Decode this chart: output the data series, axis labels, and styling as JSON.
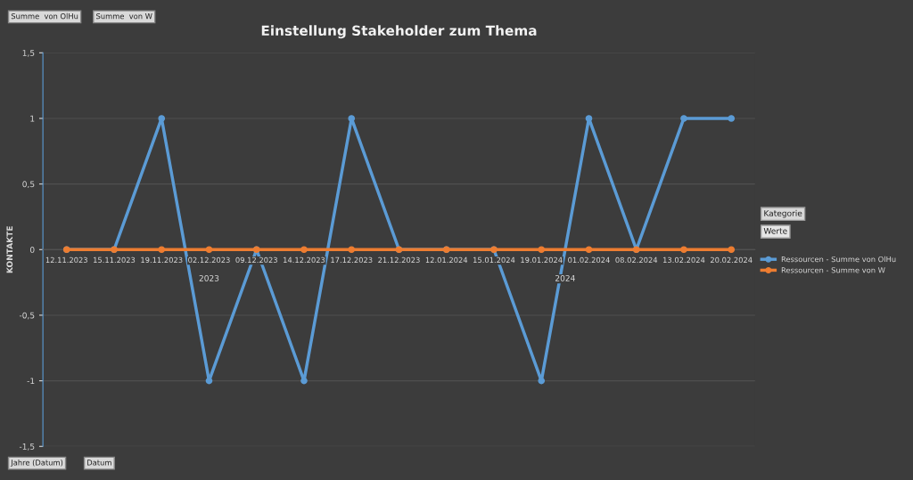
{
  "chart_data": {
    "type": "line",
    "title": "Einstellung Stakeholder zum Thema",
    "ylabel": "KONTAKTE",
    "legend_title": "Kategorie",
    "categories": [
      "12.11.2023",
      "15.11.2023",
      "19.11.2023",
      "02.12.2023",
      "09.12.2023",
      "14.12.2023",
      "17.12.2023",
      "21.12.2023",
      "12.01.2024",
      "15.01.2024",
      "19.01.2024",
      "01.02.2024",
      "08.02.2024",
      "13.02.2024",
      "20.02.2024"
    ],
    "series": [
      {
        "name": "Ressourcen - Summe von OlHu",
        "color": "#5b9bd5",
        "values": [
          0,
          0,
          1,
          -1,
          0,
          -1,
          1,
          0,
          0,
          0,
          -1,
          1,
          0,
          1,
          1
        ]
      },
      {
        "name": "Ressourcen - Summe von W",
        "color": "#ed7d31",
        "values": [
          0,
          0,
          0,
          0,
          0,
          0,
          0,
          0,
          0,
          0,
          0,
          0,
          0,
          0,
          0
        ]
      }
    ],
    "ylim": [
      -1.5,
      1.5
    ],
    "yticks": [
      {
        "value": -1.5,
        "label": "-1,5"
      },
      {
        "value": -1,
        "label": "-1"
      },
      {
        "value": -0.5,
        "label": "-0,5"
      },
      0,
      {
        "value": 0.5,
        "label": "0,5"
      },
      1,
      {
        "value": 1.5,
        "label": "1,5"
      }
    ],
    "grid": "y",
    "legend": "right",
    "marker": "circle",
    "line_style": "solid",
    "annotations": [
      "2023",
      "2024",
      "Summe  von OlHu",
      "Summe  von W",
      "Jahre (Datum)",
      "Datum",
      "Werte"
    ]
  }
}
